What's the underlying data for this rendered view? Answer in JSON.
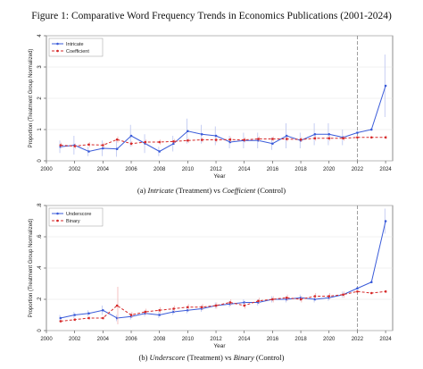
{
  "figure_title": "Figure 1: Comparative Word Frequency Trends in Economics Publications (2001-2024)",
  "chart_data": [
    {
      "type": "line",
      "caption_word_a": "Intricate",
      "caption_tag_a": "(Treatment) vs",
      "caption_word_b": "Coefficient",
      "caption_tag_b": "(Control)",
      "caption_prefix": "(a)",
      "xlabel": "Year",
      "ylabel": "Proportion (Treatment Group Normalized)",
      "xlim": [
        2000,
        2024.5
      ],
      "ylim": [
        0,
        4
      ],
      "xticks": [
        2000,
        2002,
        2004,
        2006,
        2008,
        2010,
        2012,
        2014,
        2016,
        2018,
        2020,
        2022,
        2024
      ],
      "yticks": [
        0,
        1,
        2,
        3,
        4
      ],
      "ytick_labels": [
        "0",
        "1",
        "2",
        "3",
        "4"
      ],
      "vline": 2022,
      "legend_position": "top-left",
      "x": [
        2001,
        2002,
        2003,
        2004,
        2005,
        2006,
        2007,
        2008,
        2009,
        2010,
        2011,
        2012,
        2013,
        2014,
        2015,
        2016,
        2017,
        2018,
        2019,
        2020,
        2021,
        2022,
        2023,
        2024
      ],
      "series": [
        {
          "name": "Intricate",
          "color": "#3a5bd9",
          "style": "solid",
          "values": [
            0.45,
            0.5,
            0.3,
            0.4,
            0.38,
            0.8,
            0.55,
            0.3,
            0.55,
            0.95,
            0.85,
            0.8,
            0.6,
            0.65,
            0.65,
            0.55,
            0.8,
            0.65,
            0.85,
            0.85,
            0.75,
            0.9,
            1.0,
            2.4
          ],
          "err": [
            0.2,
            0.3,
            0.15,
            0.25,
            0.25,
            0.35,
            0.3,
            0.15,
            0.25,
            0.4,
            0.3,
            0.3,
            0.2,
            0.25,
            0.25,
            0.2,
            0.4,
            0.25,
            0.35,
            0.35,
            0.25,
            0.0,
            0.0,
            1.0
          ]
        },
        {
          "name": "Coefficient",
          "color": "#d62828",
          "style": "dashed",
          "values": [
            0.5,
            0.47,
            0.52,
            0.5,
            0.68,
            0.55,
            0.6,
            0.6,
            0.62,
            0.65,
            0.67,
            0.67,
            0.68,
            0.67,
            0.7,
            0.7,
            0.7,
            0.68,
            0.72,
            0.72,
            0.72,
            0.75,
            0.75,
            0.75
          ],
          "err": [
            0.08,
            0.08,
            0.08,
            0.08,
            0.1,
            0.08,
            0.08,
            0.08,
            0.08,
            0.08,
            0.08,
            0.08,
            0.08,
            0.08,
            0.08,
            0.08,
            0.08,
            0.08,
            0.08,
            0.08,
            0.08,
            0.0,
            0.0,
            0.06
          ]
        }
      ]
    },
    {
      "type": "line",
      "caption_word_a": "Underscore",
      "caption_tag_a": "(Treatment) vs",
      "caption_word_b": "Binary",
      "caption_tag_b": "(Control)",
      "caption_prefix": "(b)",
      "xlabel": "Year",
      "ylabel": "Proportion (Treatment Group Normalized)",
      "xlim": [
        2000,
        2024.5
      ],
      "ylim": [
        0,
        0.8
      ],
      "xticks": [
        2000,
        2002,
        2004,
        2006,
        2008,
        2010,
        2012,
        2014,
        2016,
        2018,
        2020,
        2022,
        2024
      ],
      "yticks": [
        0,
        0.2,
        0.4,
        0.6,
        0.8
      ],
      "ytick_labels": [
        "0",
        ".2",
        ".4",
        ".6",
        ".8"
      ],
      "vline": 2022,
      "legend_position": "top-left",
      "x": [
        2001,
        2002,
        2003,
        2004,
        2005,
        2006,
        2007,
        2008,
        2009,
        2010,
        2011,
        2012,
        2013,
        2014,
        2015,
        2016,
        2017,
        2018,
        2019,
        2020,
        2021,
        2022,
        2023,
        2024
      ],
      "series": [
        {
          "name": "Underscore",
          "color": "#3a5bd9",
          "style": "solid",
          "values": [
            0.08,
            0.1,
            0.11,
            0.13,
            0.08,
            0.09,
            0.11,
            0.1,
            0.12,
            0.13,
            0.14,
            0.16,
            0.17,
            0.18,
            0.18,
            0.2,
            0.2,
            0.21,
            0.2,
            0.21,
            0.23,
            0.27,
            0.31,
            0.7
          ],
          "err": [
            0.02,
            0.02,
            0.02,
            0.03,
            0.02,
            0.02,
            0.02,
            0.02,
            0.02,
            0.02,
            0.02,
            0.02,
            0.02,
            0.02,
            0.02,
            0.02,
            0.02,
            0.02,
            0.02,
            0.02,
            0.02,
            0.0,
            0.0,
            0.08
          ]
        },
        {
          "name": "Binary",
          "color": "#d62828",
          "style": "dashed",
          "values": [
            0.06,
            0.07,
            0.08,
            0.08,
            0.16,
            0.1,
            0.12,
            0.13,
            0.14,
            0.15,
            0.15,
            0.16,
            0.18,
            0.16,
            0.19,
            0.2,
            0.21,
            0.2,
            0.22,
            0.22,
            0.23,
            0.25,
            0.24,
            0.25
          ],
          "err": [
            0.01,
            0.01,
            0.01,
            0.01,
            0.12,
            0.02,
            0.02,
            0.02,
            0.02,
            0.02,
            0.02,
            0.02,
            0.02,
            0.02,
            0.02,
            0.02,
            0.02,
            0.02,
            0.02,
            0.02,
            0.02,
            0.0,
            0.0,
            0.01
          ]
        }
      ]
    }
  ]
}
